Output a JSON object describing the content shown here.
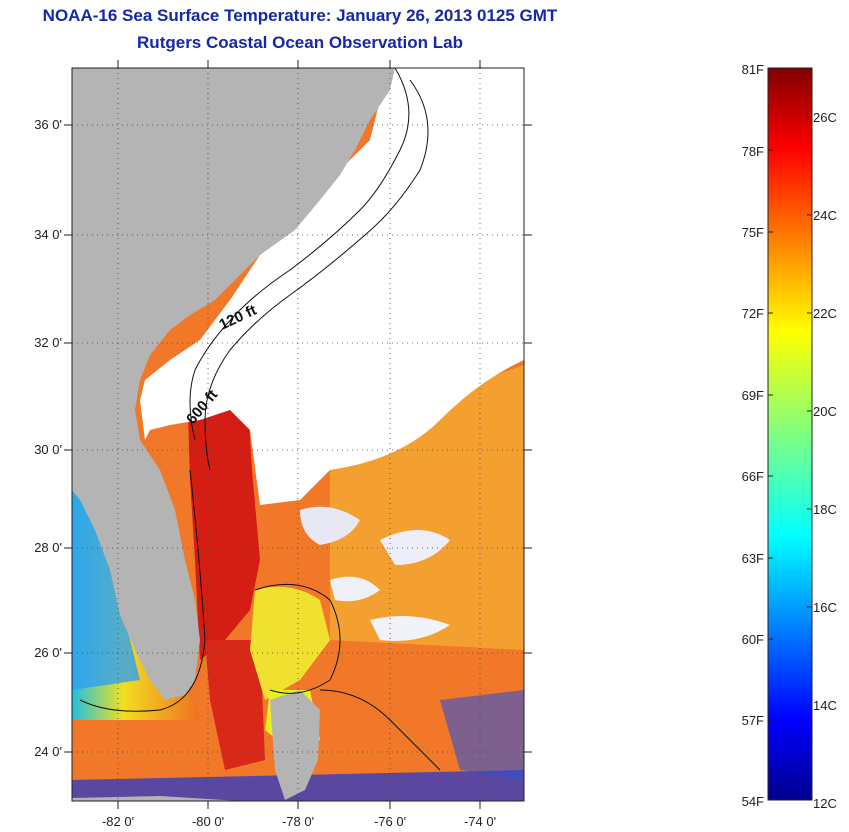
{
  "title": {
    "line1": "NOAA-16 Sea Surface Temperature:  January 26, 2013 0125 GMT",
    "line2": "Rutgers Coastal Ocean Observation Lab"
  },
  "map": {
    "lat_labels": [
      "36 0'",
      "34 0'",
      "32 0'",
      "30 0'",
      "28 0'",
      "26 0'",
      "24 0'"
    ],
    "lat_values": [
      36,
      34,
      32,
      30,
      28,
      26,
      24
    ],
    "lon_labels": [
      "-82 0'",
      "-80 0'",
      "-78 0'",
      "-76 0'",
      "-74 0'"
    ],
    "lon_values": [
      -82,
      -80,
      -78,
      -76,
      -74
    ],
    "lat_range": [
      23.0,
      37.1
    ],
    "lon_range": [
      -83.0,
      -73.0
    ],
    "contour_labels": [
      "120 ft",
      "600 ft"
    ],
    "colors": {
      "land": "#b4b4b4",
      "cloud": "#ffffff",
      "gulf_stream": "#d41e14",
      "warm_water": "#f07828"
    }
  },
  "colorbar": {
    "fahrenheit_labels": [
      "81F",
      "78F",
      "75F",
      "72F",
      "69F",
      "66F",
      "63F",
      "60F",
      "57F",
      "54F"
    ],
    "fahrenheit_values": [
      81,
      78,
      75,
      72,
      69,
      66,
      63,
      60,
      57,
      54
    ],
    "celsius_labels": [
      "26C",
      "24C",
      "22C",
      "20C",
      "18C",
      "16C",
      "14C",
      "12C"
    ],
    "celsius_values": [
      26,
      24,
      22,
      20,
      18,
      16,
      14,
      12
    ],
    "range_f": [
      54,
      81
    ],
    "colormap": "jet"
  }
}
